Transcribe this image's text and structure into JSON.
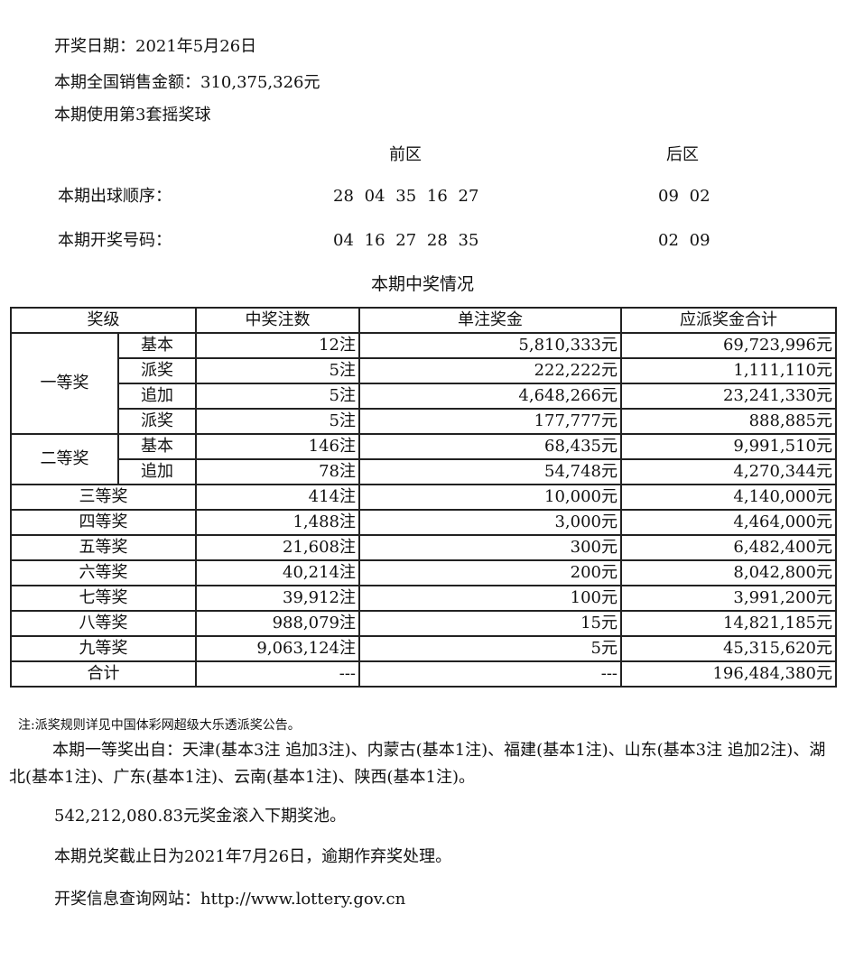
{
  "header": {
    "draw_date": "开奖日期：2021年5月26日",
    "sales": "本期全国销售金额：310,375,326元",
    "ball_set": "本期使用第3套摇奖球"
  },
  "draw": {
    "front_label": "前区",
    "back_label": "后区",
    "order_label": "本期出球顺序：",
    "order_front": "28 04 35 16 27",
    "order_back": "09 02",
    "numbers_label": "本期开奖号码：",
    "numbers_front": "04 16 27 28 35",
    "numbers_back": "02 09"
  },
  "table": {
    "title": "本期中奖情况",
    "headers": [
      "奖级",
      "中奖注数",
      "单注奖金",
      "应派奖金合计"
    ],
    "first_prize": {
      "label": "一等奖",
      "rows": [
        {
          "sub": "基本",
          "count": "12注",
          "unit": "5,810,333元",
          "total": "69,723,996元"
        },
        {
          "sub": "派奖",
          "count": "5注",
          "unit": "222,222元",
          "total": "1,111,110元"
        },
        {
          "sub": "追加",
          "count": "5注",
          "unit": "4,648,266元",
          "total": "23,241,330元"
        },
        {
          "sub": "派奖",
          "count": "5注",
          "unit": "177,777元",
          "total": "888,885元"
        }
      ]
    },
    "second_prize": {
      "label": "二等奖",
      "rows": [
        {
          "sub": "基本",
          "count": "146注",
          "unit": "68,435元",
          "total": "9,991,510元"
        },
        {
          "sub": "追加",
          "count": "78注",
          "unit": "54,748元",
          "total": "4,270,344元"
        }
      ]
    },
    "rows": [
      {
        "level": "三等奖",
        "count": "414注",
        "unit": "10,000元",
        "total": "4,140,000元"
      },
      {
        "level": "四等奖",
        "count": "1,488注",
        "unit": "3,000元",
        "total": "4,464,000元"
      },
      {
        "level": "五等奖",
        "count": "21,608注",
        "unit": "300元",
        "total": "6,482,400元"
      },
      {
        "level": "六等奖",
        "count": "40,214注",
        "unit": "200元",
        "total": "8,042,800元"
      },
      {
        "level": "七等奖",
        "count": "39,912注",
        "unit": "100元",
        "total": "3,991,200元"
      },
      {
        "level": "八等奖",
        "count": "988,079注",
        "unit": "15元",
        "total": "14,821,185元"
      },
      {
        "level": "九等奖",
        "count": "9,063,124注",
        "unit": "5元",
        "total": "45,315,620元"
      },
      {
        "level": "合计",
        "count": "---",
        "unit": "---",
        "total": "196,484,380元"
      }
    ]
  },
  "footer": {
    "note": "注:派奖规则详见中国体彩网超级大乐透派奖公告。",
    "winners": "本期一等奖出自：天津(基本3注 追加3注)、内蒙古(基本1注)、福建(基本1注)、山东(基本3注 追加2注)、湖北(基本1注)、广东(基本1注)、云南(基本1注)、陕西(基本1注)。",
    "rollover": "542,212,080.83元奖金滚入下期奖池。",
    "deadline": "本期兑奖截止日为2021年7月26日，逾期作弃奖处理。",
    "website_label": "开奖信息查询网站：",
    "website_url": "http://www.lottery.gov.cn"
  }
}
